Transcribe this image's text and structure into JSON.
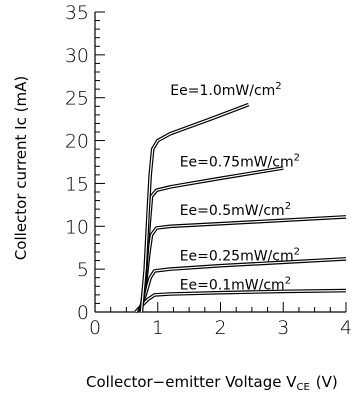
{
  "chart_data": {
    "type": "line",
    "xlabel": "Collector−emitter Voltage V",
    "xlabel_sub": "CE",
    "xlabel_unit": "(V)",
    "ylabel": "Collector current Ic (mA)",
    "xlim": [
      0,
      4
    ],
    "ylim": [
      0,
      35
    ],
    "x_ticks": [
      "0",
      "1",
      "2",
      "3",
      "4"
    ],
    "y_ticks": [
      "0",
      "5",
      "10",
      "15",
      "20",
      "25",
      "30",
      "35"
    ],
    "grid": false,
    "series": [
      {
        "name": "Ee=0.1mW/cm",
        "sup": "2",
        "points": [
          [
            0.65,
            0
          ],
          [
            0.75,
            0.8
          ],
          [
            0.85,
            1.5
          ],
          [
            0.95,
            2.0
          ],
          [
            1.2,
            2.1
          ],
          [
            2,
            2.25
          ],
          [
            3,
            2.4
          ],
          [
            4,
            2.5
          ]
        ]
      },
      {
        "name": "Ee=0.25mW/cm",
        "sup": "2",
        "points": [
          [
            0.7,
            0
          ],
          [
            0.8,
            2.0
          ],
          [
            0.88,
            4.0
          ],
          [
            0.95,
            4.8
          ],
          [
            1.2,
            5.0
          ],
          [
            2,
            5.4
          ],
          [
            3,
            5.8
          ],
          [
            4,
            6.2
          ]
        ]
      },
      {
        "name": "Ee=0.5mW/cm",
        "sup": "2",
        "points": [
          [
            0.72,
            0
          ],
          [
            0.8,
            3.0
          ],
          [
            0.86,
            7.0
          ],
          [
            0.9,
            9.0
          ],
          [
            0.98,
            9.8
          ],
          [
            1.2,
            10.0
          ],
          [
            2,
            10.3
          ],
          [
            3,
            10.7
          ],
          [
            4,
            11.1
          ]
        ]
      },
      {
        "name": "Ee=0.75mW/cm",
        "sup": "2",
        "points": [
          [
            0.73,
            0
          ],
          [
            0.8,
            4.0
          ],
          [
            0.86,
            10.0
          ],
          [
            0.9,
            13.5
          ],
          [
            0.98,
            14.2
          ],
          [
            1.2,
            14.6
          ],
          [
            2,
            15.6
          ],
          [
            3,
            16.8
          ]
        ]
      },
      {
        "name": "Ee=1.0mW/cm",
        "sup": "2",
        "points": [
          [
            0.74,
            0
          ],
          [
            0.8,
            5.0
          ],
          [
            0.85,
            12.0
          ],
          [
            0.88,
            16.0
          ],
          [
            0.92,
            19.0
          ],
          [
            1.0,
            20.0
          ],
          [
            1.2,
            20.8
          ],
          [
            1.8,
            22.4
          ],
          [
            2.45,
            24.2
          ]
        ]
      }
    ],
    "label_positions_data": [
      [
        1.35,
        2.6
      ],
      [
        1.35,
        6.0
      ],
      [
        1.35,
        11.3
      ],
      [
        1.35,
        17.0
      ],
      [
        1.2,
        25.3
      ]
    ]
  }
}
